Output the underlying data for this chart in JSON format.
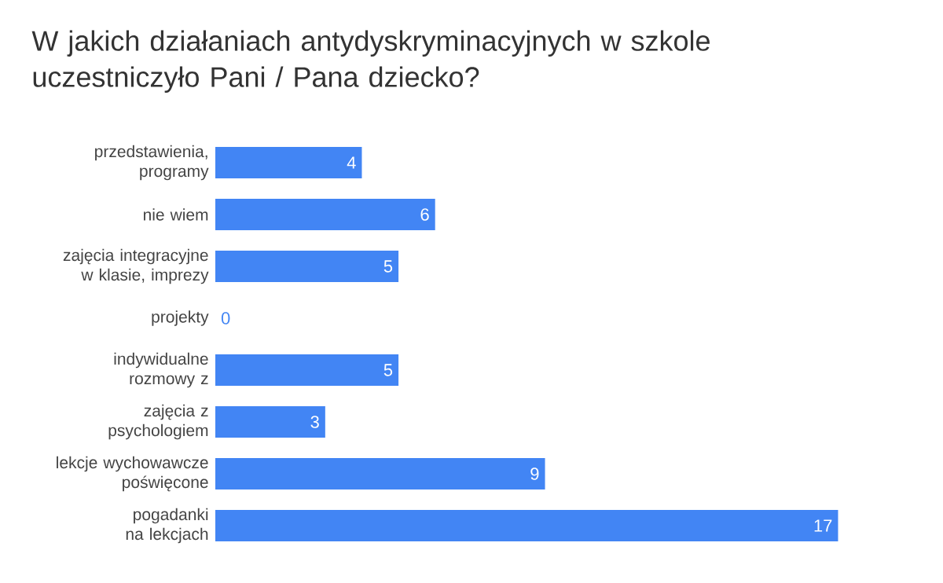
{
  "chart_data": {
    "type": "bar",
    "orientation": "horizontal",
    "title": "W jakich działaniach antydyskryminacyjnych w szkole uczestniczyło Pani / Pana dziecko?",
    "categories": [
      "przedstawienia, programy",
      "nie wiem",
      "zajęcia integracyjne w klasie, imprezy",
      "projekty",
      "indywidualne rozmowy z",
      "zajęcia z psychologiem",
      "lekcje wychowawcze poświęcone",
      "pogadanki na lekcjach"
    ],
    "values": [
      4,
      6,
      5,
      0,
      5,
      3,
      9,
      17
    ],
    "color": "#4285f4",
    "data_labels": true
  }
}
